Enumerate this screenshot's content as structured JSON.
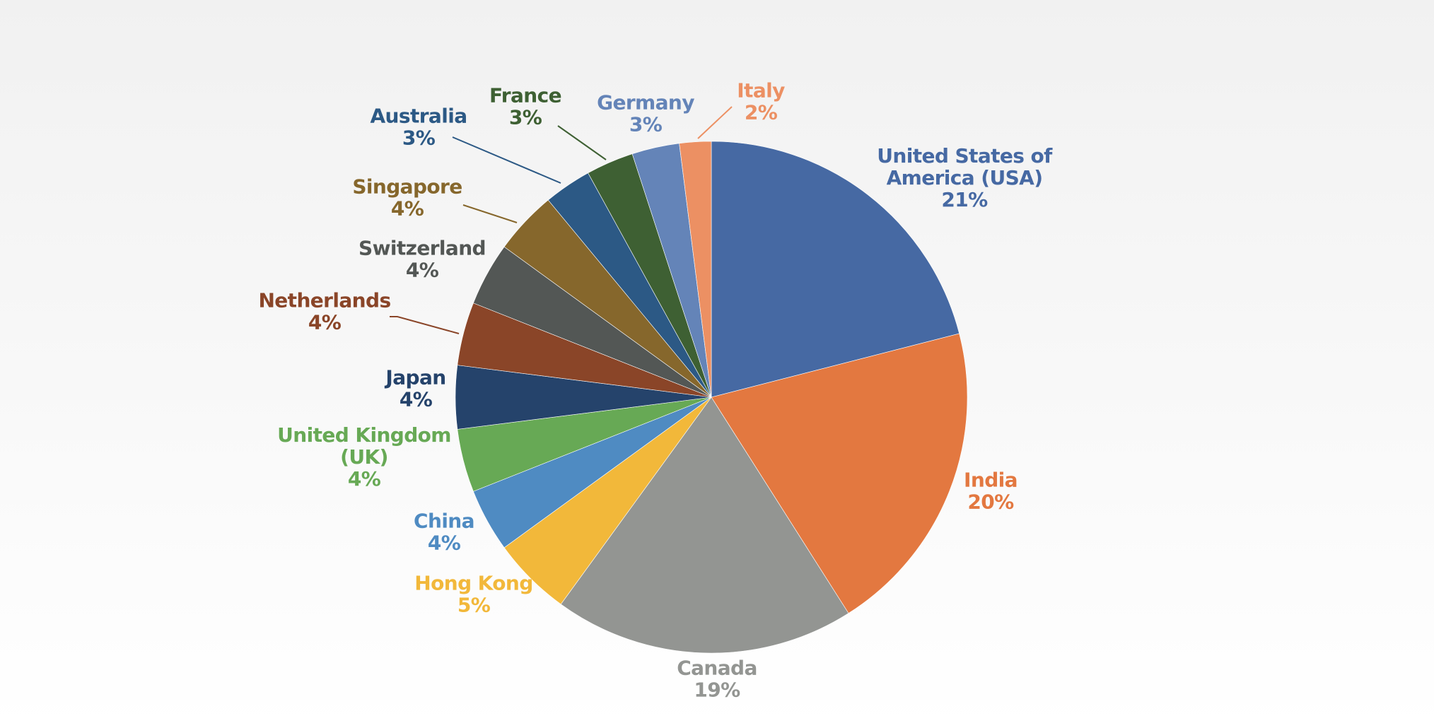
{
  "chart_data": {
    "type": "pie",
    "start": "12 o'clock",
    "direction": "clockwise",
    "slices": [
      {
        "label": [
          "United States of",
          "America (USA)"
        ],
        "pct_label": "21%",
        "value": 21,
        "color": "#4669A3"
      },
      {
        "label": [
          "India"
        ],
        "pct_label": "20%",
        "value": 20,
        "color": "#E37840"
      },
      {
        "label": [
          "Canada"
        ],
        "pct_label": "19%",
        "value": 19,
        "color": "#939592"
      },
      {
        "label": [
          "Hong Kong"
        ],
        "pct_label": "5%",
        "value": 5,
        "color": "#F2B83A"
      },
      {
        "label": [
          "China"
        ],
        "pct_label": "4%",
        "value": 4,
        "color": "#4F8BC2"
      },
      {
        "label": [
          "United Kingdom",
          "(UK)"
        ],
        "pct_label": "4%",
        "value": 4,
        "color": "#67A955"
      },
      {
        "label": [
          "Japan"
        ],
        "pct_label": "4%",
        "value": 4,
        "color": "#25436B"
      },
      {
        "label": [
          "Netherlands"
        ],
        "pct_label": "4%",
        "value": 4,
        "color": "#8A4528"
      },
      {
        "label": [
          "Switzerland"
        ],
        "pct_label": "4%",
        "value": 4,
        "color": "#535755"
      },
      {
        "label": [
          "Singapore"
        ],
        "pct_label": "4%",
        "value": 4,
        "color": "#86672C"
      },
      {
        "label": [
          "Australia"
        ],
        "pct_label": "3%",
        "value": 3,
        "color": "#2C5985"
      },
      {
        "label": [
          "France"
        ],
        "pct_label": "3%",
        "value": 3,
        "color": "#3E6033"
      },
      {
        "label": [
          "Germany"
        ],
        "pct_label": "3%",
        "value": 3,
        "color": "#6484B8"
      },
      {
        "label": [
          "Italy"
        ],
        "pct_label": "2%",
        "value": 2,
        "color": "#EC9063"
      }
    ]
  }
}
